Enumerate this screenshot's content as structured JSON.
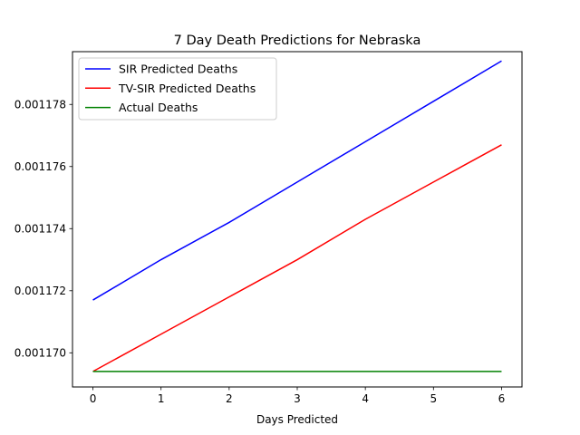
{
  "chart_data": {
    "type": "line",
    "title": "7 Day Death Predictions for Nebraska",
    "xlabel": "Days Predicted",
    "ylabel": "",
    "x": [
      0,
      1,
      2,
      3,
      4,
      5,
      6
    ],
    "xlim": [
      -0.3,
      6.3
    ],
    "ylim": [
      0.0011689,
      0.0011797
    ],
    "xticks": [
      0,
      1,
      2,
      3,
      4,
      5,
      6
    ],
    "xtick_labels": [
      "0",
      "1",
      "2",
      "3",
      "4",
      "5",
      "6"
    ],
    "yticks": [
      0.00117,
      0.001172,
      0.001174,
      0.001176,
      0.001178
    ],
    "ytick_labels": [
      "0.001170",
      "0.001172",
      "0.001174",
      "0.001176",
      "0.001178"
    ],
    "grid": false,
    "legend_position": "top-left",
    "series": [
      {
        "name": "SIR Predicted Deaths",
        "color": "#0000ff",
        "values": [
          0.0011717,
          0.001173,
          0.0011742,
          0.0011755,
          0.0011768,
          0.0011781,
          0.0011794
        ]
      },
      {
        "name": "TV-SIR Predicted Deaths",
        "color": "#ff0000",
        "values": [
          0.0011694,
          0.0011706,
          0.0011718,
          0.001173,
          0.0011743,
          0.0011755,
          0.0011767
        ]
      },
      {
        "name": "Actual Deaths",
        "color": "#008000",
        "values": [
          0.0011694,
          0.0011694,
          0.0011694,
          0.0011694,
          0.0011694,
          0.0011694,
          0.0011694
        ]
      }
    ]
  }
}
